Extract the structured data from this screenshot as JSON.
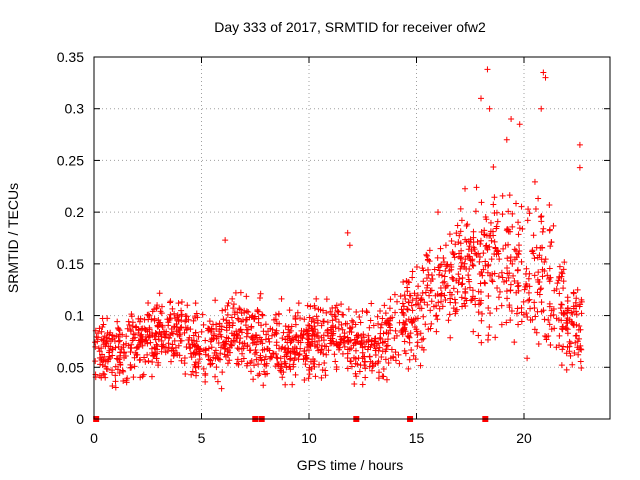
{
  "chart_data": {
    "type": "scatter",
    "title": "Day 333 of 2017, SRMTID for receiver ofw2",
    "xlabel": "GPS time / hours",
    "ylabel": "SRMTID / TECUs",
    "xlim": [
      0,
      24
    ],
    "ylim": [
      0,
      0.35
    ],
    "x_ticks": [
      0,
      5,
      10,
      15,
      20
    ],
    "y_ticks": [
      0,
      0.05,
      0.1,
      0.15,
      0.2,
      0.25,
      0.3,
      0.35
    ],
    "x_tick_labels": [
      "0",
      "5",
      "10",
      "15",
      "20"
    ],
    "y_tick_labels": [
      "0",
      "0.05",
      "0.1",
      "0.15",
      "0.2",
      "0.25",
      "0.3",
      "0.35"
    ],
    "grid": true,
    "marker": "plus",
    "color": "#ff0000",
    "zero_markers_x": [
      0.1,
      7.5,
      7.8,
      12.2,
      14.7,
      18.2
    ],
    "series_profile": [
      {
        "x": 0.0,
        "y": 0.07,
        "spread": 0.03
      },
      {
        "x": 1.0,
        "y": 0.062,
        "spread": 0.035
      },
      {
        "x": 2.0,
        "y": 0.07,
        "spread": 0.035
      },
      {
        "x": 3.0,
        "y": 0.078,
        "spread": 0.035
      },
      {
        "x": 4.0,
        "y": 0.085,
        "spread": 0.04
      },
      {
        "x": 5.0,
        "y": 0.068,
        "spread": 0.035
      },
      {
        "x": 6.0,
        "y": 0.075,
        "spread": 0.04
      },
      {
        "x": 7.0,
        "y": 0.088,
        "spread": 0.04
      },
      {
        "x": 8.0,
        "y": 0.072,
        "spread": 0.04
      },
      {
        "x": 9.0,
        "y": 0.07,
        "spread": 0.035
      },
      {
        "x": 10.0,
        "y": 0.078,
        "spread": 0.035
      },
      {
        "x": 11.0,
        "y": 0.08,
        "spread": 0.04
      },
      {
        "x": 12.0,
        "y": 0.075,
        "spread": 0.04
      },
      {
        "x": 13.0,
        "y": 0.07,
        "spread": 0.035
      },
      {
        "x": 14.0,
        "y": 0.085,
        "spread": 0.04
      },
      {
        "x": 15.0,
        "y": 0.11,
        "spread": 0.05
      },
      {
        "x": 16.0,
        "y": 0.13,
        "spread": 0.05
      },
      {
        "x": 17.0,
        "y": 0.145,
        "spread": 0.06
      },
      {
        "x": 18.0,
        "y": 0.15,
        "spread": 0.07
      },
      {
        "x": 19.0,
        "y": 0.16,
        "spread": 0.08
      },
      {
        "x": 20.0,
        "y": 0.13,
        "spread": 0.07
      },
      {
        "x": 21.0,
        "y": 0.15,
        "spread": 0.08
      },
      {
        "x": 22.0,
        "y": 0.1,
        "spread": 0.05
      },
      {
        "x": 22.7,
        "y": 0.08,
        "spread": 0.04
      }
    ],
    "outliers": [
      {
        "x": 18.0,
        "y": 0.31
      },
      {
        "x": 18.3,
        "y": 0.338
      },
      {
        "x": 18.4,
        "y": 0.3
      },
      {
        "x": 19.2,
        "y": 0.27
      },
      {
        "x": 19.4,
        "y": 0.29
      },
      {
        "x": 19.8,
        "y": 0.285
      },
      {
        "x": 20.9,
        "y": 0.335
      },
      {
        "x": 21.0,
        "y": 0.33
      },
      {
        "x": 20.8,
        "y": 0.3
      },
      {
        "x": 22.6,
        "y": 0.265
      },
      {
        "x": 22.6,
        "y": 0.243
      },
      {
        "x": 6.1,
        "y": 0.173
      },
      {
        "x": 11.8,
        "y": 0.18
      },
      {
        "x": 11.9,
        "y": 0.168
      },
      {
        "x": 16.0,
        "y": 0.2
      }
    ]
  }
}
